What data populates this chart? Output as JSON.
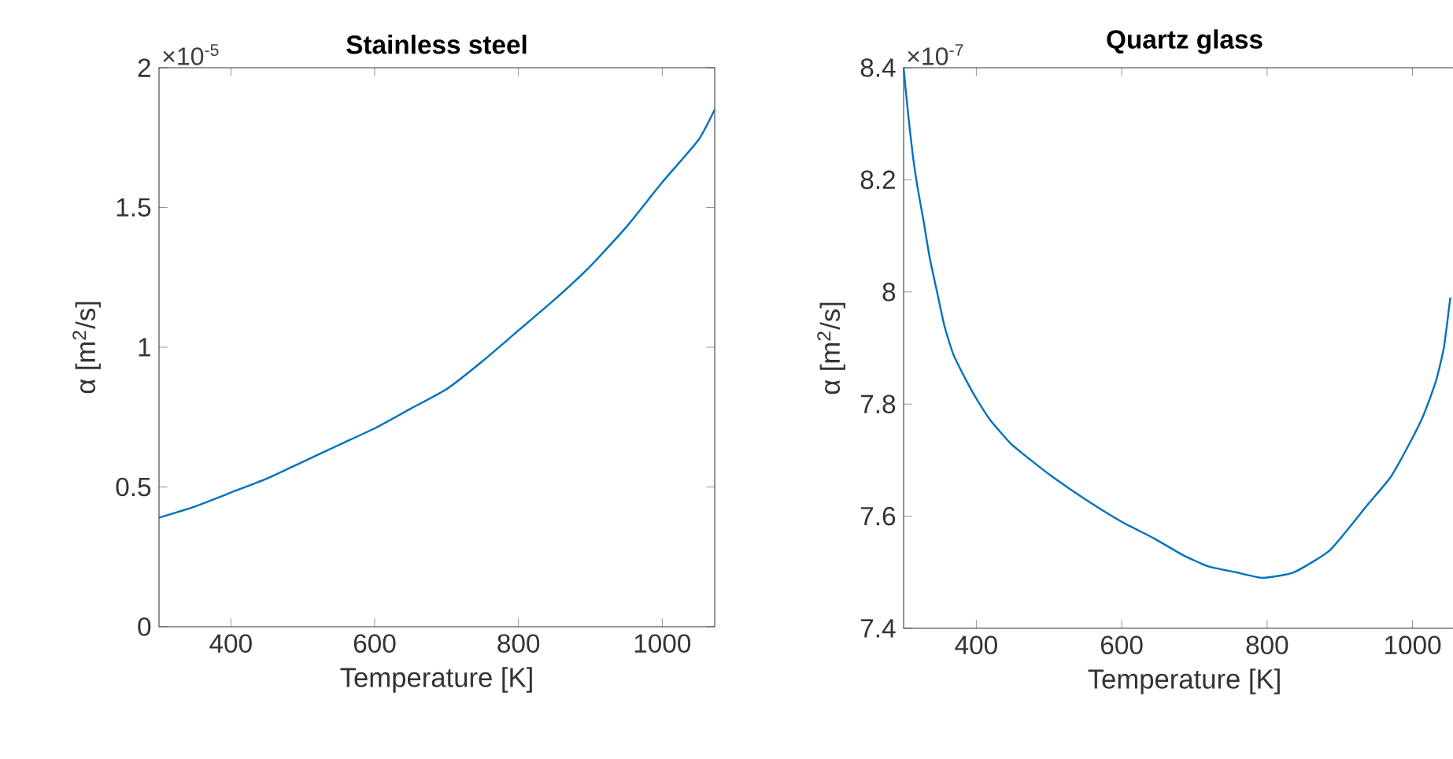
{
  "chart_data": [
    {
      "type": "line",
      "title": "Stainless steel",
      "xlabel": "Temperature [K]",
      "ylabel": "α [m$^{2}$/s]",
      "annotations": [
        "×10$^{-5}$"
      ],
      "xlim": [
        300,
        1073
      ],
      "xticks": [
        400,
        600,
        800,
        1000
      ],
      "ylim": [
        0,
        2
      ],
      "yticks": [
        0,
        0.5,
        1,
        1.5,
        2
      ],
      "x": [
        300,
        350,
        400,
        450,
        500,
        550,
        600,
        650,
        700,
        750,
        800,
        850,
        900,
        950,
        1000,
        1050,
        1073
      ],
      "series": [
        {
          "color": "#0072bd",
          "values": [
            0.39,
            0.43,
            0.48,
            0.53,
            0.59,
            0.65,
            0.71,
            0.78,
            0.85,
            0.95,
            1.06,
            1.17,
            1.29,
            1.43,
            1.59,
            1.74,
            1.85
          ]
        }
      ]
    },
    {
      "type": "line",
      "title": "Quartz glass",
      "xlabel": "Temperature [K]",
      "ylabel": "α [m$^{2}$/s]",
      "annotations": [
        "×10$^{-7}$"
      ],
      "xlim": [
        300,
        1073
      ],
      "xticks": [
        400,
        600,
        800,
        1000
      ],
      "ylim": [
        7.4,
        8.4
      ],
      "yticks": [
        7.4,
        7.6,
        7.8,
        8,
        8.2,
        8.4
      ],
      "x": [
        300,
        306,
        313,
        320,
        327,
        336,
        346,
        356,
        368,
        383,
        400,
        420,
        447,
        475,
        505,
        550,
        600,
        645,
        685,
        720,
        757,
        794,
        837,
        887,
        938,
        970,
        996,
        1015,
        1032,
        1043,
        1052
      ],
      "series": [
        {
          "color": "#0072bd",
          "values": [
            8.4,
            8.32,
            8.24,
            8.18,
            8.13,
            8.06,
            8.0,
            7.94,
            7.89,
            7.85,
            7.81,
            7.77,
            7.73,
            7.7,
            7.67,
            7.63,
            7.59,
            7.56,
            7.53,
            7.51,
            7.5,
            7.49,
            7.5,
            7.54,
            7.62,
            7.67,
            7.73,
            7.78,
            7.84,
            7.9,
            7.99
          ]
        }
      ]
    }
  ]
}
